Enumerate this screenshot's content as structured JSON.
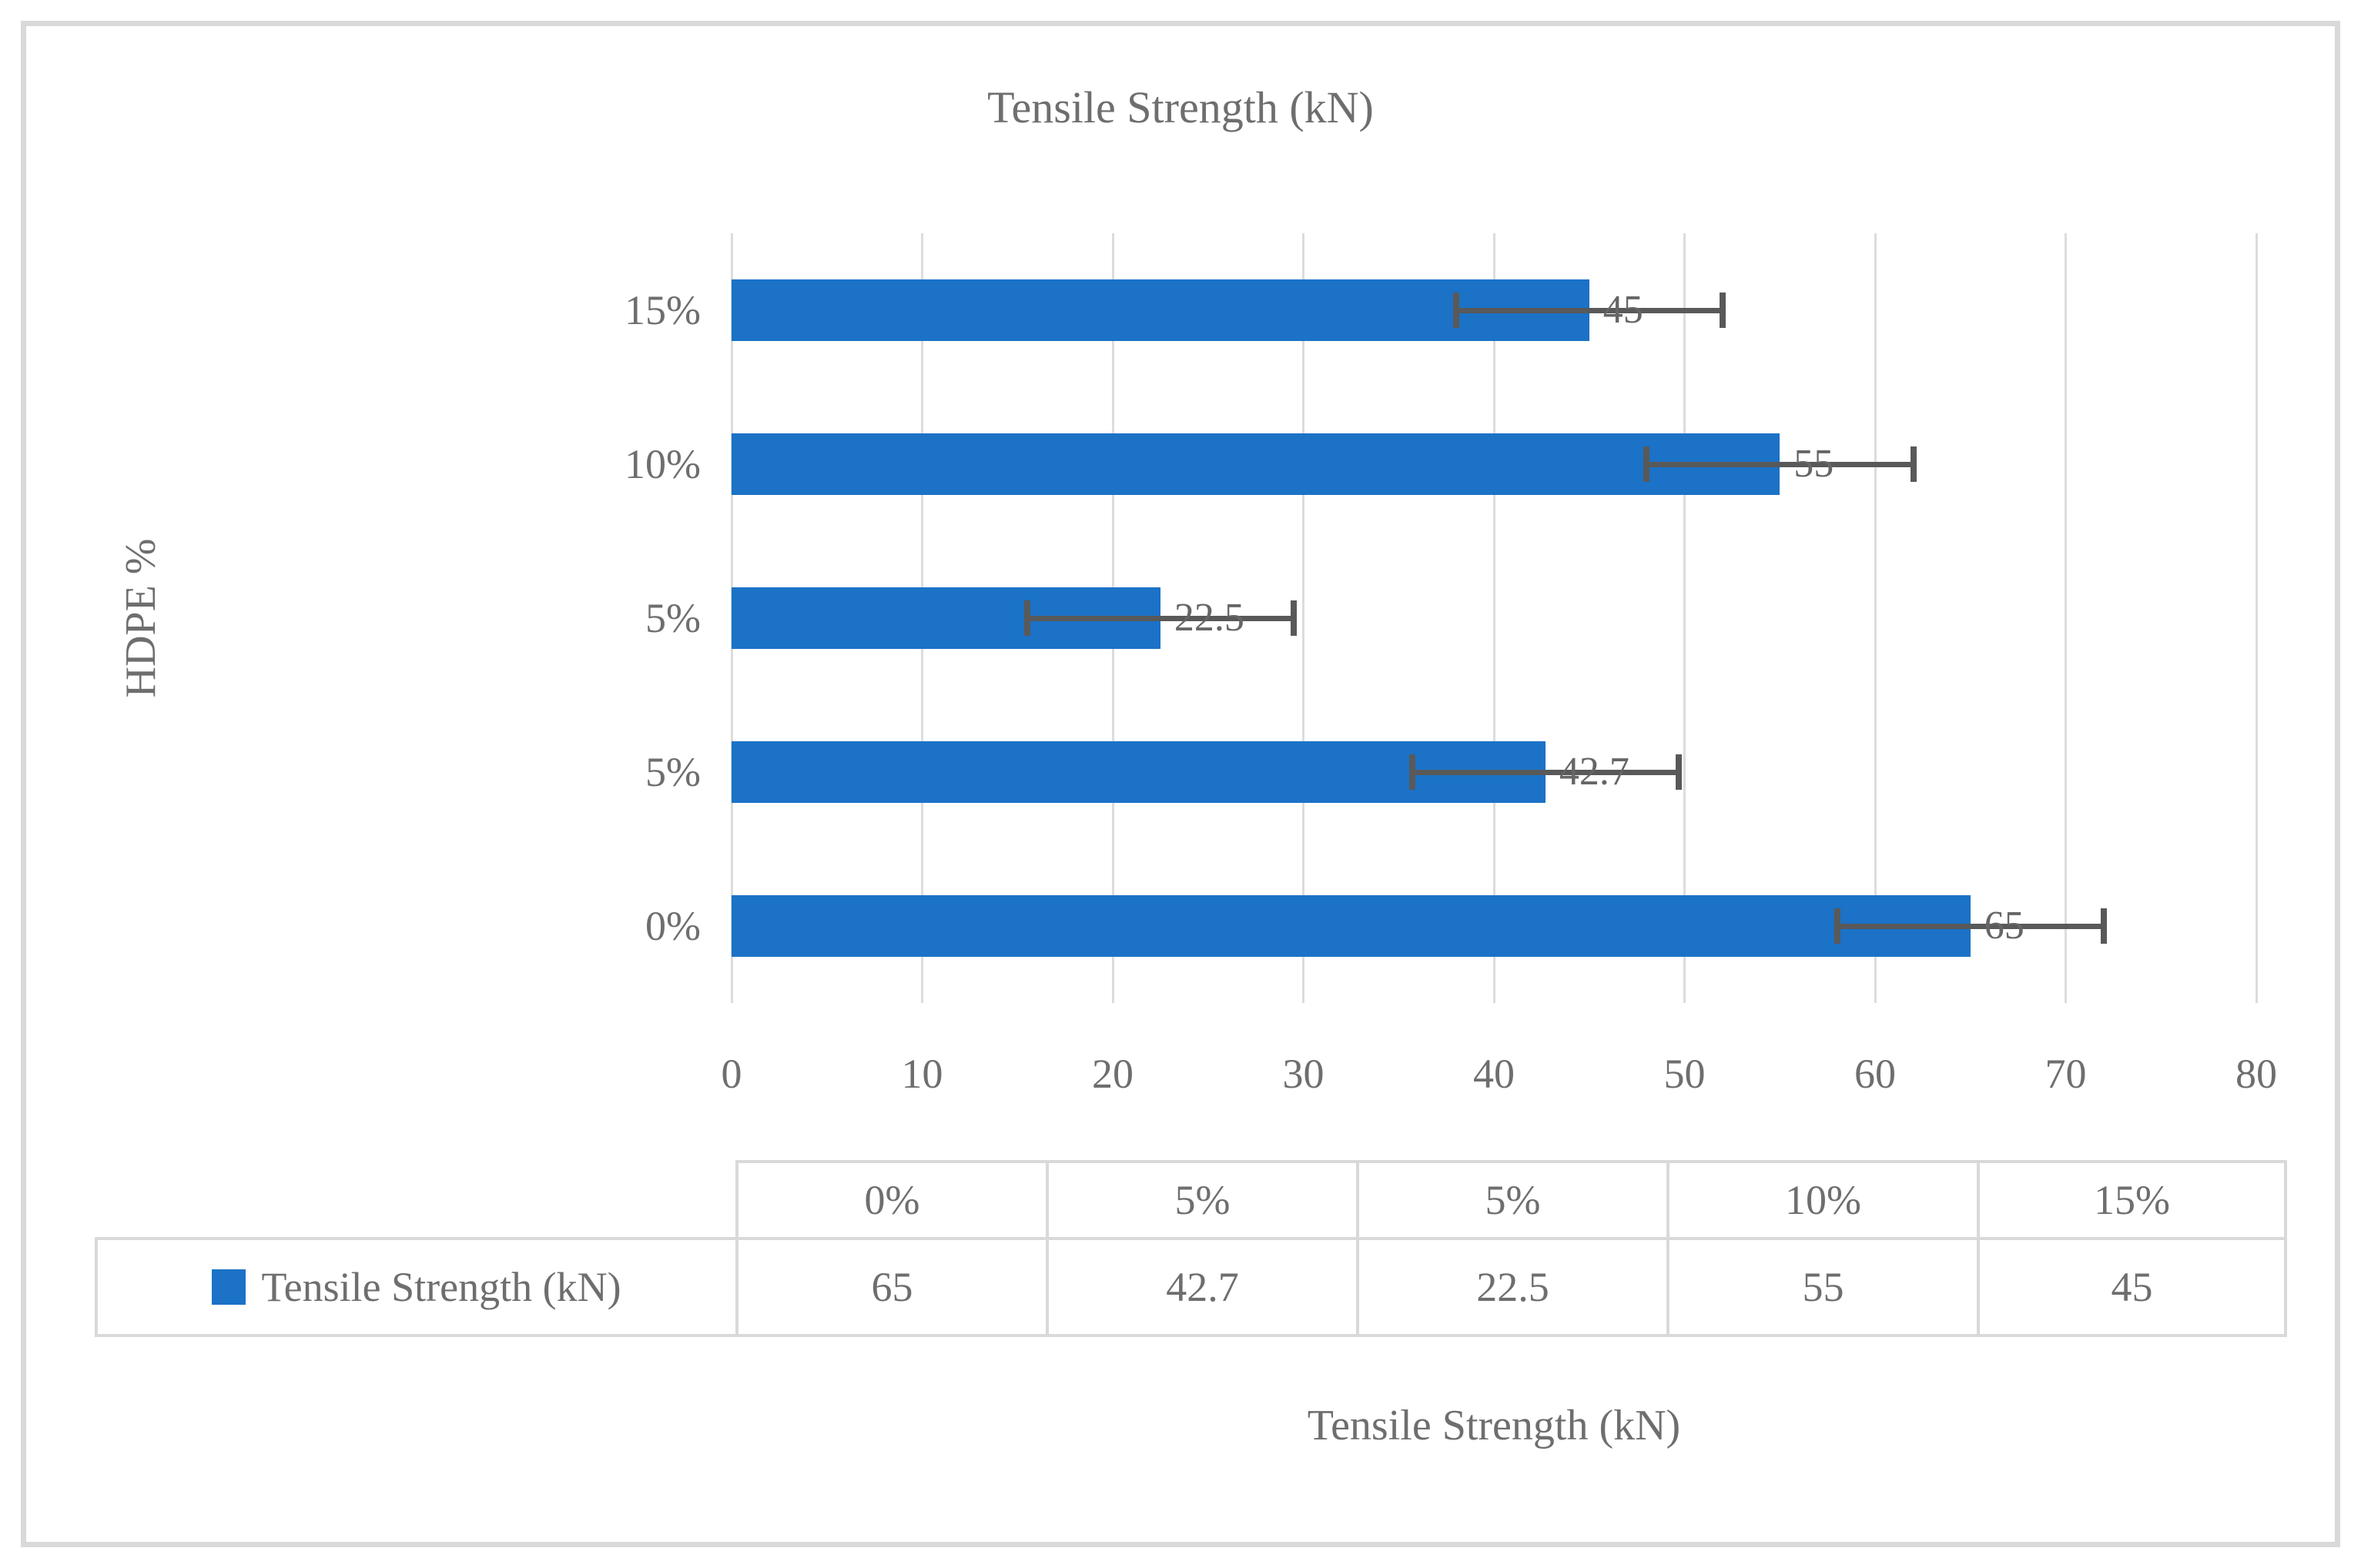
{
  "chart_data": {
    "type": "bar",
    "orientation": "horizontal",
    "title": "Tensile Strength (kN)",
    "xlabel": "Tensile Strength (kN)",
    "ylabel": "HDPE %",
    "categories": [
      "0%",
      "5%",
      "5%",
      "10%",
      "15%"
    ],
    "series": [
      {
        "name": "Tensile Strength (kN)",
        "values": [
          65,
          42.7,
          22.5,
          55,
          45
        ],
        "error_plus_minus": [
          7,
          7,
          7,
          7,
          7
        ]
      }
    ],
    "data_labels": [
      "65",
      "42.7",
      "22.5",
      "55",
      "45"
    ],
    "xlim": [
      0,
      80
    ],
    "xticks": [
      0,
      10,
      20,
      30,
      40,
      50,
      60,
      70,
      80
    ],
    "xtick_labels": [
      "0",
      "10",
      "20",
      "30",
      "40",
      "50",
      "60",
      "70",
      "80"
    ],
    "grid": "vertical-gridlines",
    "legend_position": "table-below",
    "category_order_note": "listed bottom-to-top in the plot"
  },
  "data_table": {
    "legend_label": "Tensile Strength (kN)",
    "column_headers": [
      "0%",
      "5%",
      "5%",
      "10%",
      "15%"
    ],
    "row_values": [
      "65",
      "42.7",
      "22.5",
      "55",
      "45"
    ]
  },
  "colors": {
    "bar": "#1B72C7",
    "gridline": "#DCDCDC",
    "table_border": "#D9D9D9",
    "error_bar": "#595959",
    "text": "#6E6E6E",
    "data_label_text": "#666666"
  }
}
